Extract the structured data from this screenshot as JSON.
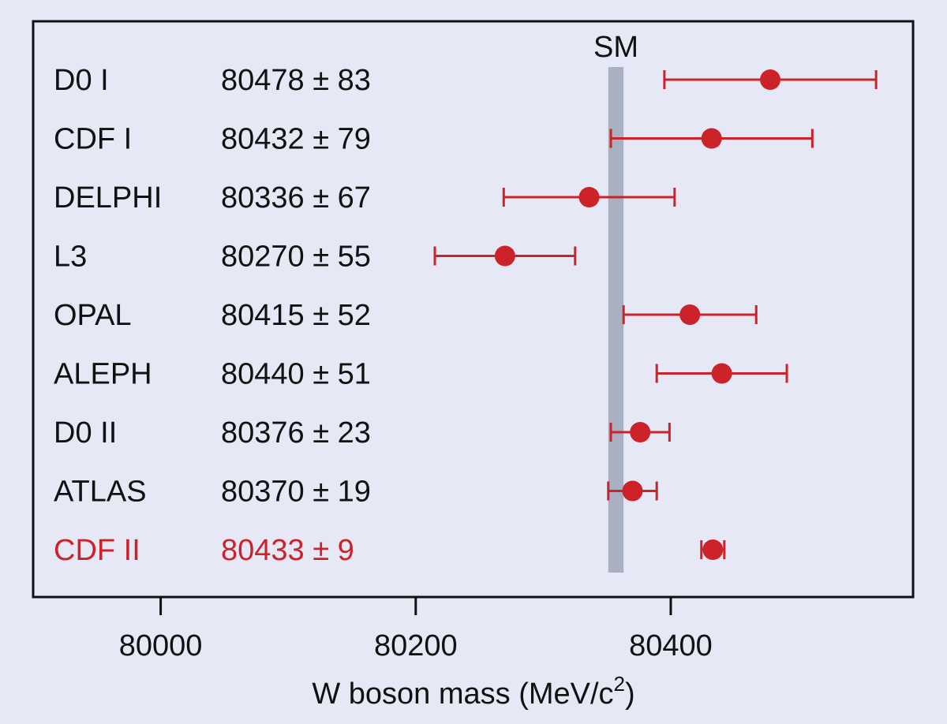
{
  "chart_data": {
    "type": "scatter",
    "xlabel": "W boson mass (MeV/c",
    "xlabel_sup": "2",
    "xlim": [
      79900,
      80590
    ],
    "x_ticks": [
      80000,
      80200,
      80400
    ],
    "x_tick_labels": [
      "80000",
      "80200",
      "80400"
    ],
    "grid": false,
    "reference_band": {
      "label": "SM",
      "center": 80357,
      "half_width": 6,
      "color": "#a9b0c2"
    },
    "measurements": [
      {
        "experiment": "D0 I",
        "label": "80478 ± 83",
        "value": 80478,
        "error": 83,
        "highlight": false
      },
      {
        "experiment": "CDF I",
        "label": "80432 ± 79",
        "value": 80432,
        "error": 79,
        "highlight": false
      },
      {
        "experiment": "DELPHI",
        "label": "80336 ± 67",
        "value": 80336,
        "error": 67,
        "highlight": false
      },
      {
        "experiment": "L3",
        "label": "80270 ± 55",
        "value": 80270,
        "error": 55,
        "highlight": false
      },
      {
        "experiment": "OPAL",
        "label": "80415 ± 52",
        "value": 80415,
        "error": 52,
        "highlight": false
      },
      {
        "experiment": "ALEPH",
        "label": "80440 ± 51",
        "value": 80440,
        "error": 51,
        "highlight": false
      },
      {
        "experiment": "D0 II",
        "label": "80376 ± 23",
        "value": 80376,
        "error": 23,
        "highlight": false
      },
      {
        "experiment": "ATLAS",
        "label": "80370 ± 19",
        "value": 80370,
        "error": 19,
        "highlight": false
      },
      {
        "experiment": "CDF II",
        "label": "80433 ± 9",
        "value": 80433,
        "error": 9,
        "highlight": true
      }
    ],
    "colors": {
      "marker": "#cc2229",
      "highlight_text": "#cc2229",
      "text": "#111111",
      "background": "#e6e9f5",
      "frame": "#111111"
    }
  }
}
